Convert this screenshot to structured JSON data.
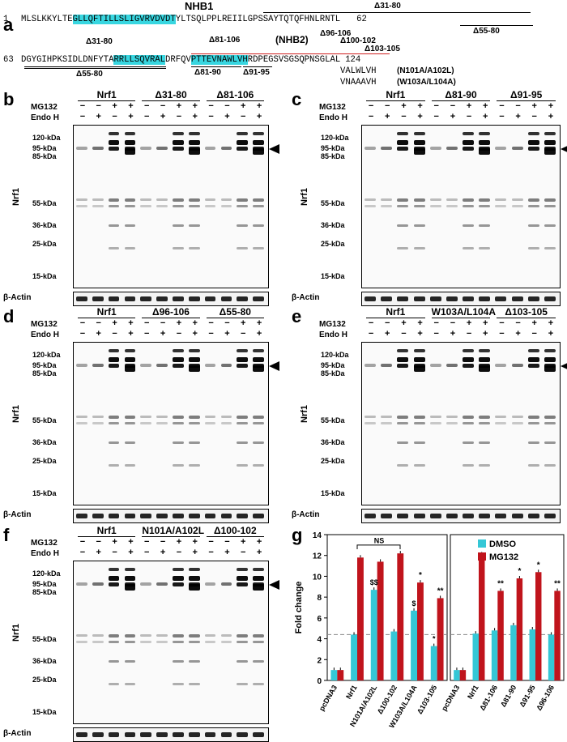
{
  "panel_a": {
    "label": "a",
    "nhb1_title": "NHB1",
    "d31_80_top": "Δ31-80",
    "line1_num_start": "1",
    "line1_pre": "MLSLKKYLTE",
    "line1_cyan": "GLLQFTILLSLIGVRVDVDT",
    "line1_post": "YLTSQLPPLREIILGPSSAYTQTQFHNLRNTL",
    "line1_num_end": "62",
    "d55_80_right": "Δ55-80",
    "line2_num_start": "63",
    "line2_pre": "DGYGIHPKSIDLDNFYTA",
    "line2_cyan1": "RRLLSQVRAL",
    "line2_red": "DRFQV",
    "line2_cyan2": "PTTEVNAWLVH",
    "line2_post": "RDPEGSVSGSQPNSGLAL",
    "line2_num_end": "124",
    "d31_80_bot": "Δ31-80",
    "d55_80_bot": "Δ55-80",
    "d81_106": "Δ81-106",
    "nhb2": "(NHB2)",
    "d96_106": "Δ96-106",
    "d100_102": "Δ100-102",
    "d103_105": "Δ103-105",
    "d81_90": "Δ81-90",
    "d91_95": "Δ91-95",
    "mut1_seq": "VALWLVH",
    "mut1_label": "(N101A/A102L)",
    "mut2_seq": "VNAAAVH",
    "mut2_label": "(W103A/L104A)"
  },
  "common": {
    "mg132": "MG132",
    "endoh": "Endo H",
    "nrf1": "Nrf1",
    "actin": "β-Actin",
    "signs_mg": [
      "−",
      "−",
      "+",
      "+"
    ],
    "signs_endo": [
      "−",
      "+",
      "−",
      "+"
    ],
    "markers_b": [
      "120-kDa",
      "95-kDa",
      "85-kDa",
      "55-kDa",
      "36-kDa",
      "25-kDa",
      "15-kDa"
    ],
    "markers_c": [
      "120-kDa",
      "95-kDa",
      "85-kDa",
      "55-kDa",
      "36-kDa",
      "25-kDa",
      "15-kDa"
    ]
  },
  "panel_b": {
    "label": "b",
    "groups": [
      "Nrf1",
      "Δ31-80",
      "Δ81-106"
    ]
  },
  "panel_c": {
    "label": "c",
    "groups": [
      "Nrf1",
      "Δ81-90",
      "Δ91-95"
    ]
  },
  "panel_d": {
    "label": "d",
    "groups": [
      "Nrf1",
      "Δ96-106",
      "Δ55-80"
    ]
  },
  "panel_e": {
    "label": "e",
    "groups": [
      "Nrf1",
      "W103A/L104A",
      "Δ103-105"
    ]
  },
  "panel_f": {
    "label": "f",
    "groups": [
      "Nrf1",
      "N101A/A102L",
      "Δ100-102"
    ]
  },
  "panel_g": {
    "label": "g",
    "ylabel": "Fold change",
    "yticks": [
      "0",
      "2",
      "4",
      "6",
      "8",
      "10",
      "12",
      "14"
    ],
    "ns": "NS",
    "legend_dmso": "DMSO",
    "legend_mg132": "MG132",
    "color_dmso": "#35c7d6",
    "color_mg132": "#c0141c"
  },
  "chart_data": {
    "type": "bar",
    "ylabel": "Fold change",
    "ylim": [
      0,
      14
    ],
    "baseline": 4.4,
    "left": {
      "categories": [
        "pcDNA3",
        "Nrf1",
        "N101A/A102L",
        "Δ100-102",
        "W103A/L104A",
        "Δ103-105"
      ],
      "series": [
        {
          "name": "DMSO",
          "values": [
            1.0,
            4.4,
            8.7,
            4.7,
            6.7,
            3.3
          ]
        },
        {
          "name": "MG132",
          "values": [
            1.0,
            11.8,
            11.4,
            12.2,
            9.4,
            7.9
          ]
        }
      ],
      "annotations_dmso": [
        "",
        "",
        "$$",
        "",
        "$",
        "*"
      ],
      "annotations_mg132": [
        "",
        "",
        "",
        "",
        "*",
        "**"
      ]
    },
    "right": {
      "categories": [
        "pcDNA3",
        "Nrf1",
        "Δ81-106",
        "Δ81-90",
        "Δ91-95",
        "Δ96-106"
      ],
      "series": [
        {
          "name": "DMSO",
          "values": [
            1.0,
            4.5,
            4.8,
            5.3,
            4.9,
            4.4
          ]
        },
        {
          "name": "MG132",
          "values": [
            1.0,
            12.1,
            8.6,
            9.8,
            10.4,
            8.6
          ]
        }
      ],
      "annotations_mg132": [
        "",
        "",
        "**",
        "*",
        "*",
        "**"
      ]
    }
  }
}
